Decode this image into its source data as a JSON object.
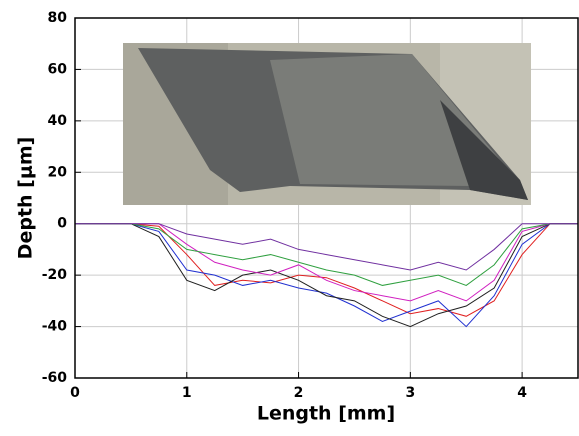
{
  "chart_data": {
    "type": "line",
    "xlabel": "Length [mm]",
    "ylabel": "Depth [μm]",
    "x": [
      0,
      0.25,
      0.5,
      0.75,
      1.0,
      1.25,
      1.5,
      1.75,
      2.0,
      2.25,
      2.5,
      2.75,
      3.0,
      3.25,
      3.5,
      3.75,
      4.0,
      4.25,
      4.5
    ],
    "series": [
      {
        "color": "#e02020",
        "values": [
          0,
          0,
          0,
          -1,
          -12,
          -24,
          -22,
          -23,
          -20,
          -21,
          -25,
          -30,
          -35,
          -33,
          -36,
          -30,
          -12,
          0,
          0
        ]
      },
      {
        "color": "#2030d0",
        "values": [
          0,
          0,
          0,
          -3,
          -18,
          -20,
          -24,
          -22,
          -25,
          -27,
          -32,
          -38,
          -34,
          -30,
          -40,
          -28,
          -8,
          0,
          0
        ]
      },
      {
        "color": "#202020",
        "values": [
          0,
          0,
          0,
          -5,
          -22,
          -26,
          -20,
          -18,
          -22,
          -28,
          -30,
          -36,
          -40,
          -35,
          -32,
          -25,
          -5,
          0,
          0
        ]
      },
      {
        "color": "#d020c0",
        "values": [
          0,
          0,
          0,
          0,
          -8,
          -15,
          -18,
          -20,
          -16,
          -22,
          -26,
          -28,
          -30,
          -26,
          -30,
          -22,
          -3,
          0,
          0
        ]
      },
      {
        "color": "#30a040",
        "values": [
          0,
          0,
          0,
          -2,
          -10,
          -12,
          -14,
          -12,
          -15,
          -18,
          -20,
          -24,
          -22,
          -20,
          -24,
          -16,
          -2,
          0,
          0
        ]
      },
      {
        "color": "#7030a0",
        "values": [
          0,
          0,
          0,
          0,
          -4,
          -6,
          -8,
          -6,
          -10,
          -12,
          -14,
          -16,
          -18,
          -15,
          -18,
          -10,
          0,
          0,
          0
        ]
      }
    ],
    "xlim": [
      0,
      4.5
    ],
    "xticks": [
      0,
      1,
      2,
      3,
      4
    ],
    "ylim": [
      -60,
      80
    ],
    "yticks": [
      -60,
      -40,
      -20,
      0,
      20,
      40,
      60,
      80
    ],
    "grid": true
  }
}
